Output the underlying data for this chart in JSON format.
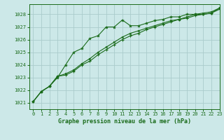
{
  "title": "Graphe pression niveau de la mer (hPa)",
  "background_color": "#cce8e8",
  "grid_color": "#aacccc",
  "line_color": "#1a6b1a",
  "xlim": [
    -0.5,
    23
  ],
  "ylim": [
    1020.5,
    1028.8
  ],
  "yticks": [
    1021,
    1022,
    1023,
    1024,
    1025,
    1026,
    1027,
    1028
  ],
  "xticks": [
    0,
    1,
    2,
    3,
    4,
    5,
    6,
    7,
    8,
    9,
    10,
    11,
    12,
    13,
    14,
    15,
    16,
    17,
    18,
    19,
    20,
    21,
    22,
    23
  ],
  "series1": {
    "x": [
      0,
      1,
      2,
      3,
      4,
      5,
      6,
      7,
      8,
      9,
      10,
      11,
      12,
      13,
      14,
      15,
      16,
      17,
      18,
      19,
      20,
      21,
      22,
      23
    ],
    "y": [
      1021.1,
      1021.9,
      1022.3,
      1023.0,
      1024.0,
      1025.0,
      1025.3,
      1026.1,
      1026.3,
      1027.0,
      1027.0,
      1027.55,
      1027.1,
      1027.1,
      1027.3,
      1027.5,
      1027.6,
      1027.8,
      1027.8,
      1028.0,
      1028.0,
      1028.0,
      1028.1,
      1028.5
    ]
  },
  "series2": {
    "x": [
      0,
      1,
      2,
      3,
      4,
      5,
      6,
      7,
      8,
      9,
      10,
      11,
      12,
      13,
      14,
      15,
      16,
      17,
      18,
      19,
      20,
      21,
      22,
      23
    ],
    "y": [
      1021.1,
      1021.9,
      1022.3,
      1023.1,
      1023.2,
      1023.5,
      1024.0,
      1024.3,
      1024.8,
      1025.2,
      1025.6,
      1026.0,
      1026.3,
      1026.5,
      1026.8,
      1027.0,
      1027.2,
      1027.4,
      1027.6,
      1027.7,
      1027.9,
      1028.0,
      1028.1,
      1028.4
    ]
  },
  "series3": {
    "x": [
      0,
      1,
      2,
      3,
      4,
      5,
      6,
      7,
      8,
      9,
      10,
      11,
      12,
      13,
      14,
      15,
      16,
      17,
      18,
      19,
      20,
      21,
      22,
      23
    ],
    "y": [
      1021.1,
      1021.9,
      1022.3,
      1023.1,
      1023.3,
      1023.6,
      1024.1,
      1024.5,
      1025.0,
      1025.4,
      1025.8,
      1026.2,
      1026.5,
      1026.7,
      1026.9,
      1027.1,
      1027.3,
      1027.5,
      1027.6,
      1027.8,
      1028.0,
      1028.1,
      1028.2,
      1028.5
    ]
  }
}
